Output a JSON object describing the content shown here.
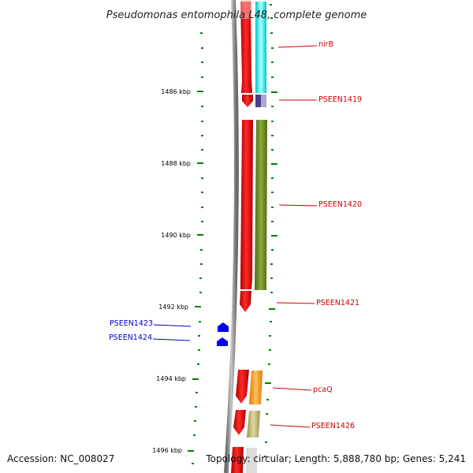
{
  "title": "Pseudomonas entomophila L48, complete genome",
  "accession_text": "Accession: NC_008027",
  "topology_text": "Topology: circular; Length: 5,888,780 bp; Genes: 5,241",
  "kbp_ticks": [
    "1486 kbp",
    "1488 kbp",
    "1490 kbp",
    "1492 kbp",
    "1494 kbp",
    "1496 kbp"
  ],
  "genes_right": [
    "nirB",
    "PSEEN1419",
    "PSEEN1420",
    "PSEEN1421",
    "pcaQ",
    "PSEEN1426"
  ],
  "genes_left": [
    "PSEEN1423",
    "PSEEN1424"
  ],
  "colors": {
    "red": "#ff0000",
    "cyan": "#00ffff",
    "olive": "#6b8e23",
    "orange": "#ff9900",
    "khaki": "#bdb76b",
    "purple": "#483d8b",
    "blue": "#0000ff",
    "tick_green": "#008000",
    "axis_gray": "#999999"
  }
}
